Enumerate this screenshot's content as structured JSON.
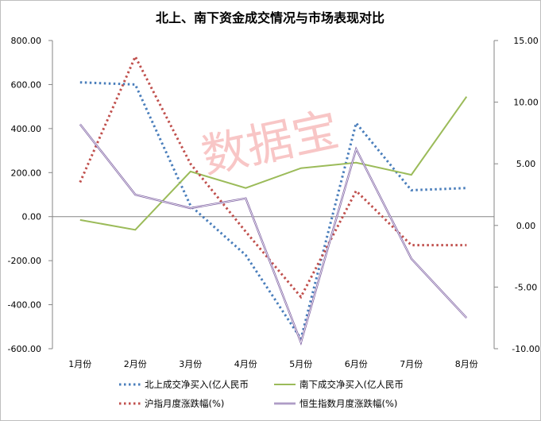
{
  "chart_data": {
    "type": "line",
    "title": "北上、南下资金成交情况与市场表现对比",
    "watermark": "数据宝",
    "categories": [
      "1月份",
      "2月份",
      "3月份",
      "4月份",
      "5月份",
      "6月份",
      "7月份",
      "8月份"
    ],
    "y_left": {
      "ylim": [
        -600,
        800
      ],
      "ticks": [
        "-600.00",
        "-400.00",
        "-200.00",
        "0.00",
        "200.00",
        "400.00",
        "600.00",
        "800.00"
      ]
    },
    "y_right": {
      "ylim": [
        -10,
        15
      ],
      "ticks": [
        "-10.00",
        "-5.00",
        "0.00",
        "5.00",
        "10.00",
        "15.00"
      ]
    },
    "grid": false,
    "legend_position": "bottom",
    "series": [
      {
        "name": "北上成交净买入(亿人民币",
        "axis": "left",
        "style": "dotted",
        "color": "#4a7ebb",
        "values": [
          610,
          600,
          50,
          -175,
          -555,
          425,
          120,
          130
        ]
      },
      {
        "name": "南下成交净买入(亿人民币",
        "axis": "left",
        "style": "solid",
        "color": "#9bbb59",
        "values": [
          -15,
          -60,
          205,
          130,
          220,
          245,
          190,
          545
        ]
      },
      {
        "name": "沪指月度涨跌幅(%)",
        "axis": "right",
        "style": "dotted",
        "color": "#c0504d",
        "values": [
          3.5,
          13.7,
          5.0,
          -0.5,
          -5.8,
          2.8,
          -1.6,
          -1.6
        ]
      },
      {
        "name": "恒生指数月度涨跌幅(%)",
        "axis": "right",
        "style": "double",
        "color": "#7f62a3",
        "values": [
          8.2,
          2.5,
          1.4,
          2.2,
          -9.5,
          6.2,
          -2.7,
          -7.5
        ]
      }
    ]
  }
}
